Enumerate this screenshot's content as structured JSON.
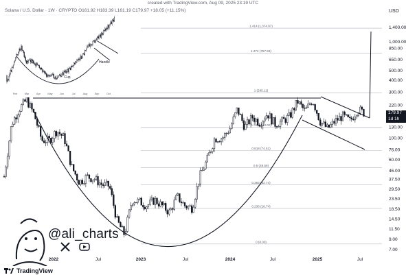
{
  "header": {
    "created": "created with TradingView.com, Aug 09, 2025 23:19 UTC",
    "symbol": "Solana / U.S. Dollar · 1W · CRYPTO",
    "ohlc": "O161.92  H183.39  L161.19  C179.97  +18.05 (+11.15%)",
    "currency": "USD"
  },
  "watermark": {
    "handle": "@ali_charts",
    "icons": [
      "x-icon",
      "youtube-icon"
    ]
  },
  "footer": {
    "brand": "TradingView"
  },
  "price_tag": {
    "price": "179.97",
    "interval": "1d 1h"
  },
  "colors": {
    "candle": "#131722",
    "line": "#131722",
    "grid": "#e0e3eb",
    "fib": "#b2b5be"
  },
  "chart_data": [
    {
      "type": "candlestick",
      "title": "",
      "xlabel": "",
      "ylabel": "",
      "scale": "log",
      "ylim": [
        7.0,
        1400.0
      ],
      "y_ticks": [
        "1,400.00",
        "1,000.00",
        "850.00",
        "650.00",
        "500.00",
        "400.00",
        "300.00",
        "220.00",
        "130.00",
        "100.00",
        "76.00",
        "60.00",
        "46.00",
        "37.50",
        "29.50",
        "23.50",
        "18.50",
        "14.50",
        "11.50",
        "9.00",
        "7.00"
      ],
      "x_ticks": [
        "2022",
        "Jul",
        "2023",
        "Jul",
        "2024",
        "Jul",
        "2025",
        "Jul"
      ],
      "fib_levels": [
        {
          "label": "1.414 (1,374.87)",
          "value": 1374.87
        },
        {
          "label": "1.272 (757.93)",
          "value": 757.93
        },
        {
          "label": "1 (295.11)",
          "value": 295.11
        },
        {
          "label": "0.786 (130.00)",
          "value": 130.0
        },
        {
          "label": "0.618 (74.51)",
          "value": 74.51
        },
        {
          "label": "0.5 (49.59)",
          "value": 49.59
        },
        {
          "label": "0.382 (32.74)",
          "value": 32.74
        },
        {
          "label": "0.236 (18.74)",
          "value": 18.74
        },
        {
          "label": "0 (8.00)",
          "value": 8.0
        }
      ],
      "close_path": [
        {
          "t": "2021-08",
          "v": 40
        },
        {
          "t": "2021-09",
          "v": 140
        },
        {
          "t": "2021-10",
          "v": 200
        },
        {
          "t": "2021-11",
          "v": 250
        },
        {
          "t": "2021-12",
          "v": 175
        },
        {
          "t": "2022-01",
          "v": 95
        },
        {
          "t": "2022-02",
          "v": 95
        },
        {
          "t": "2022-03",
          "v": 120
        },
        {
          "t": "2022-04",
          "v": 100
        },
        {
          "t": "2022-05",
          "v": 50
        },
        {
          "t": "2022-06",
          "v": 35
        },
        {
          "t": "2022-07",
          "v": 40
        },
        {
          "t": "2022-08",
          "v": 38
        },
        {
          "t": "2022-09",
          "v": 33
        },
        {
          "t": "2022-10",
          "v": 32
        },
        {
          "t": "2022-11",
          "v": 14
        },
        {
          "t": "2022-12",
          "v": 10
        },
        {
          "t": "2023-01",
          "v": 23
        },
        {
          "t": "2023-02",
          "v": 22
        },
        {
          "t": "2023-03",
          "v": 20
        },
        {
          "t": "2023-04",
          "v": 23
        },
        {
          "t": "2023-05",
          "v": 20
        },
        {
          "t": "2023-06",
          "v": 17
        },
        {
          "t": "2023-07",
          "v": 25
        },
        {
          "t": "2023-08",
          "v": 20
        },
        {
          "t": "2023-09",
          "v": 19
        },
        {
          "t": "2023-10",
          "v": 40
        },
        {
          "t": "2023-11",
          "v": 60
        },
        {
          "t": "2023-12",
          "v": 100
        },
        {
          "t": "2024-01",
          "v": 100
        },
        {
          "t": "2024-02",
          "v": 125
        },
        {
          "t": "2024-03",
          "v": 200
        },
        {
          "t": "2024-04",
          "v": 130
        },
        {
          "t": "2024-05",
          "v": 165
        },
        {
          "t": "2024-06",
          "v": 145
        },
        {
          "t": "2024-07",
          "v": 180
        },
        {
          "t": "2024-08",
          "v": 140
        },
        {
          "t": "2024-09",
          "v": 150
        },
        {
          "t": "2024-10",
          "v": 170
        },
        {
          "t": "2024-11",
          "v": 240
        },
        {
          "t": "2024-12",
          "v": 190
        },
        {
          "t": "2025-01",
          "v": 250
        },
        {
          "t": "2025-02",
          "v": 150
        },
        {
          "t": "2025-03",
          "v": 125
        },
        {
          "t": "2025-04",
          "v": 150
        },
        {
          "t": "2025-05",
          "v": 170
        },
        {
          "t": "2025-06",
          "v": 150
        },
        {
          "t": "2025-07",
          "v": 200
        },
        {
          "t": "2025-08",
          "v": 180
        }
      ]
    },
    {
      "type": "line",
      "title": "",
      "labels": [
        "Cup",
        "Handle"
      ],
      "x_ticks": [
        "Feb",
        "Mar",
        "Apr",
        "May",
        "Jun",
        "Jul",
        "Aug",
        "Sep",
        "Oct"
      ]
    }
  ]
}
